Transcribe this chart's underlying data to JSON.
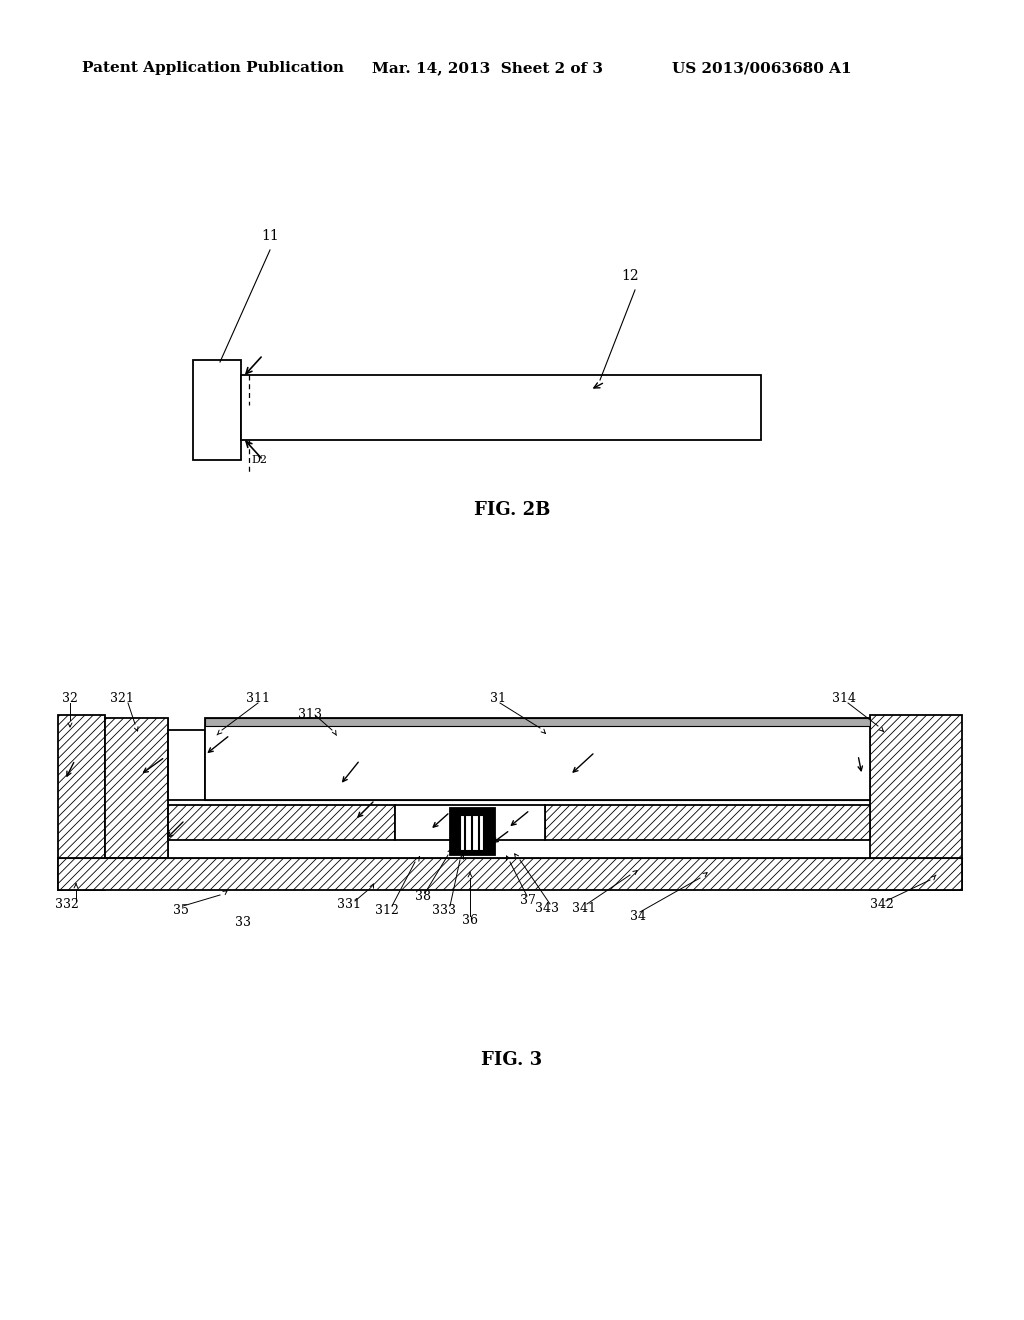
{
  "bg_color": "#ffffff",
  "header_left": "Patent Application Publication",
  "header_mid": "Mar. 14, 2013  Sheet 2 of 3",
  "header_right": "US 2013/0063680 A1",
  "fig2b_label": "FIG. 2B",
  "fig3_label": "FIG. 3",
  "header_fontsize": 11,
  "fig_label_fontsize": 13,
  "label_fontsize": 9
}
